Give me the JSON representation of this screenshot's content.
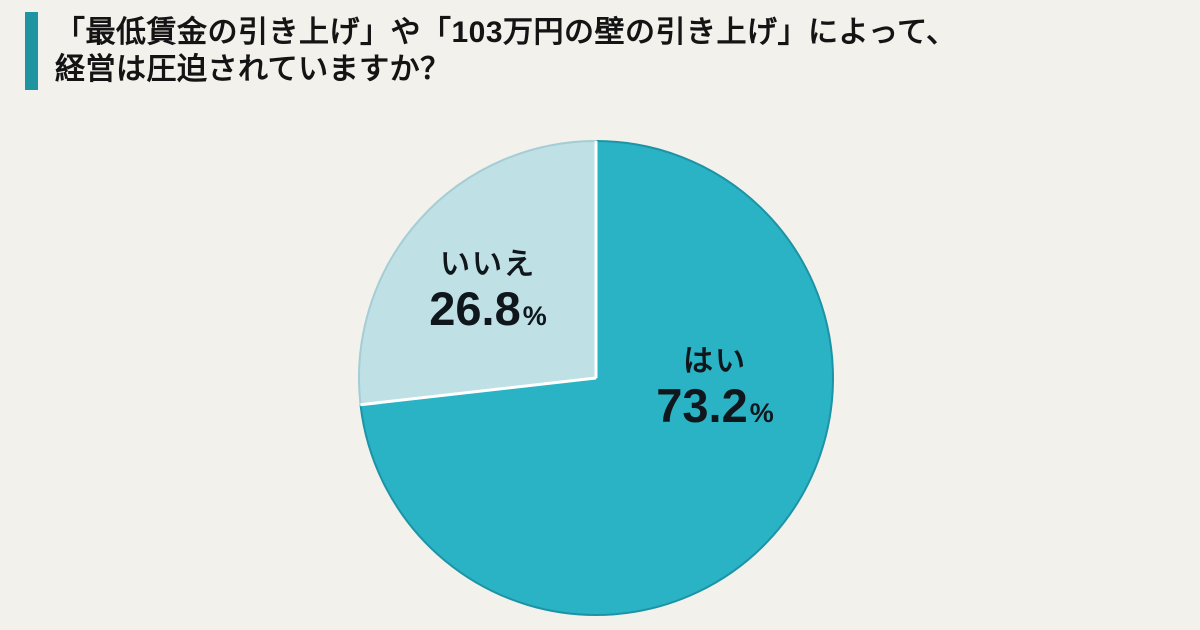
{
  "page": {
    "background_color": "#f2f1ec",
    "accent_color": "#2095a2",
    "title_lines": [
      "「最低賃金の引き上げ」や「103万円の壁の引き上げ」によって、",
      "経営は圧迫されていますか？"
    ]
  },
  "chart_data": {
    "type": "pie",
    "title": "「最低賃金の引き上げ」や「103万円の壁の引き上げ」によって、経営は圧迫されていますか？",
    "labels": [
      "はい",
      "いいえ"
    ],
    "values": [
      73.2,
      26.8
    ],
    "unit": "%",
    "colors": [
      "#2ab3c4",
      "#bfe0e5"
    ],
    "edge_colors": [
      "#1d93a6",
      "#a4cdd5"
    ],
    "separator_color": "#ffffff",
    "start_angle_deg": -90,
    "direction": "clockwise",
    "legend_position": "none",
    "data_labels": "inside",
    "text_color": "#0f171c"
  }
}
